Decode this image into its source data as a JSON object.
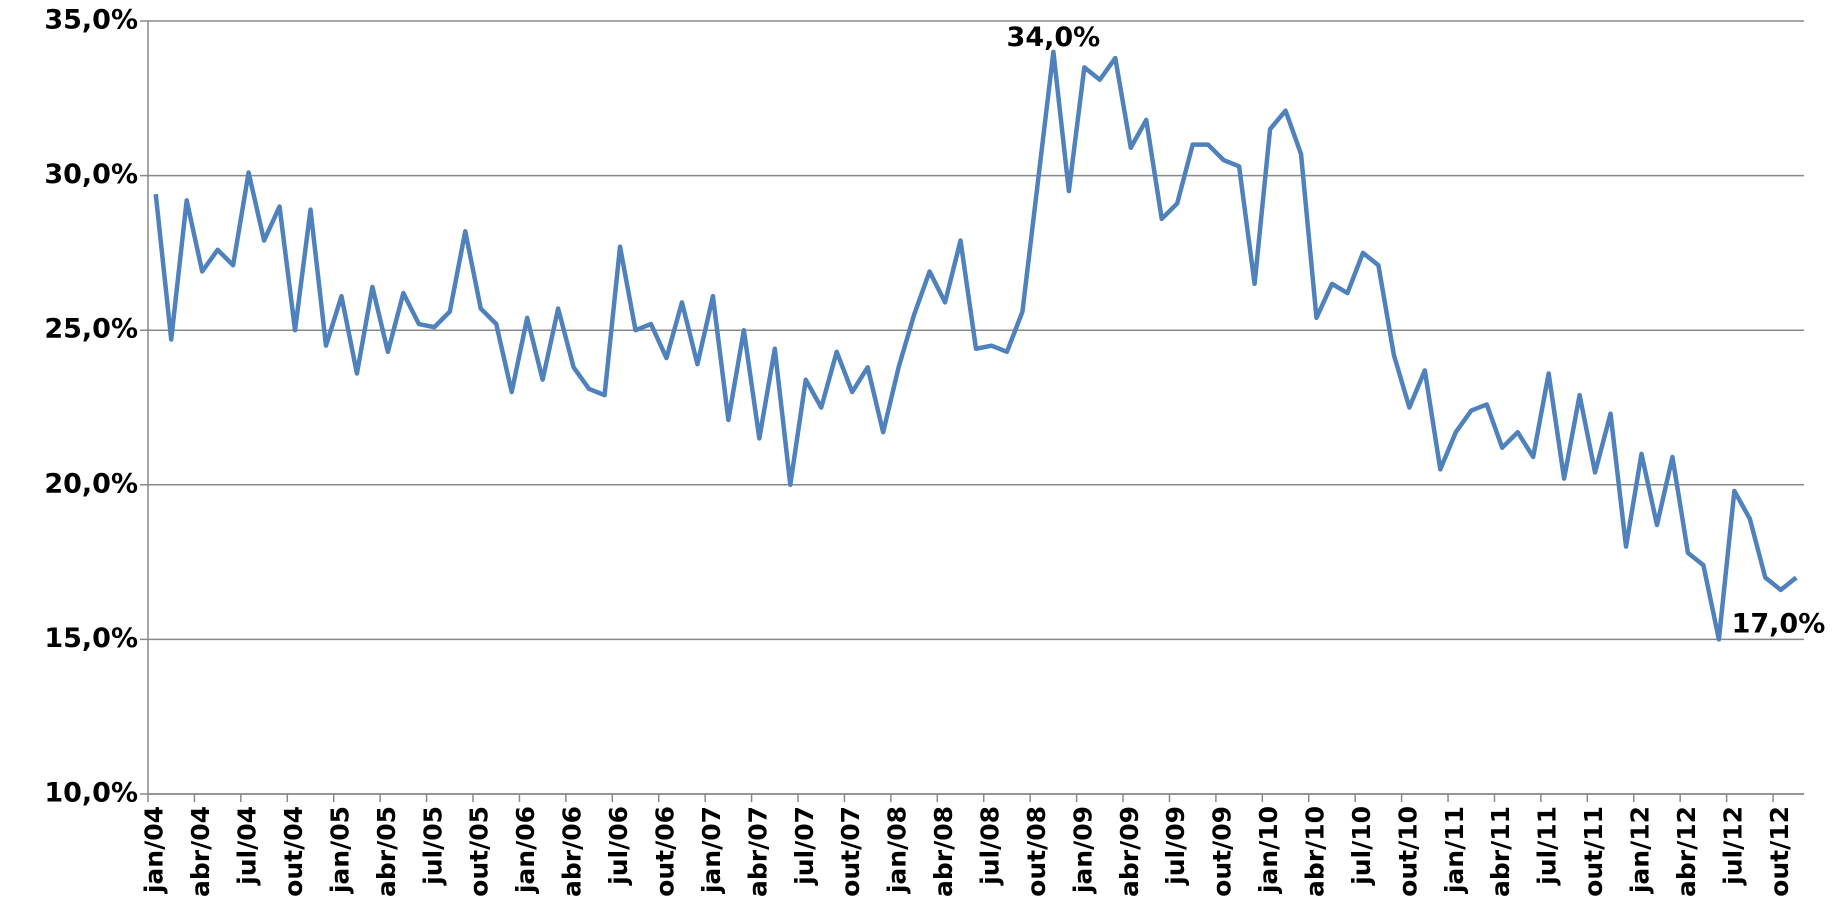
{
  "chart_data": {
    "type": "line",
    "categories": [
      "jan/04",
      null,
      null,
      "abr/04",
      null,
      null,
      "jul/04",
      null,
      null,
      "out/04",
      null,
      null,
      "jan/05",
      null,
      null,
      "abr/05",
      null,
      null,
      "jul/05",
      null,
      null,
      "out/05",
      null,
      null,
      "jan/06",
      null,
      null,
      "abr/06",
      null,
      null,
      "jul/06",
      null,
      null,
      "out/06",
      null,
      null,
      "jan/07",
      null,
      null,
      "abr/07",
      null,
      null,
      "jul/07",
      null,
      null,
      "out/07",
      null,
      null,
      "jan/08",
      null,
      null,
      "abr/08",
      null,
      null,
      "jul/08",
      null,
      null,
      "out/08",
      null,
      null,
      "jan/09",
      null,
      null,
      "abr/09",
      null,
      null,
      "jul/09",
      null,
      null,
      "out/09",
      null,
      null,
      "jan/10",
      null,
      null,
      "abr/10",
      null,
      null,
      "jul/10",
      null,
      null,
      "out/10",
      null,
      null,
      "jan/11",
      null,
      null,
      "abr/11",
      null,
      null,
      "jul/11",
      null,
      null,
      "out/11",
      null,
      null,
      "jan/12",
      null,
      null,
      "abr/12",
      null,
      null,
      "jul/12",
      null,
      null,
      "out/12",
      null
    ],
    "values": [
      29.4,
      24.7,
      29.2,
      26.9,
      27.6,
      27.1,
      30.1,
      27.9,
      29.0,
      25.0,
      28.9,
      24.5,
      26.1,
      23.6,
      26.4,
      24.3,
      26.2,
      25.2,
      25.1,
      25.6,
      28.2,
      25.7,
      25.2,
      23.0,
      25.4,
      23.4,
      25.7,
      23.8,
      23.1,
      22.9,
      27.7,
      25.0,
      25.2,
      24.1,
      25.9,
      23.9,
      26.1,
      22.1,
      25.0,
      21.5,
      24.4,
      20.0,
      23.4,
      22.5,
      24.3,
      23.0,
      23.8,
      21.7,
      23.8,
      25.5,
      26.9,
      25.9,
      27.9,
      24.4,
      24.5,
      24.3,
      25.6,
      29.8,
      34.0,
      29.5,
      33.5,
      33.1,
      33.8,
      30.9,
      31.8,
      28.6,
      29.1,
      31.0,
      31.0,
      30.5,
      30.3,
      26.5,
      31.5,
      32.1,
      30.7,
      25.4,
      26.5,
      26.2,
      27.5,
      27.1,
      24.2,
      22.5,
      23.7,
      20.5,
      21.7,
      22.4,
      22.6,
      21.2,
      21.7,
      20.9,
      23.6,
      20.2,
      22.9,
      20.4,
      22.3,
      18.0,
      21.0,
      18.7,
      20.9,
      17.8,
      17.4,
      15.0,
      19.8,
      18.9,
      17.0,
      16.6,
      17.0
    ],
    "value_labels": [
      null,
      null,
      null,
      null,
      null,
      null,
      null,
      null,
      null,
      null,
      null,
      null,
      null,
      null,
      null,
      null,
      null,
      null,
      null,
      null,
      null,
      null,
      null,
      null,
      null,
      null,
      null,
      null,
      null,
      null,
      null,
      null,
      null,
      null,
      null,
      null,
      null,
      null,
      null,
      null,
      null,
      null,
      null,
      null,
      null,
      null,
      null,
      null,
      null,
      null,
      null,
      null,
      null,
      null,
      null,
      null,
      null,
      null,
      "34,0%",
      null,
      null,
      null,
      null,
      null,
      null,
      null,
      null,
      null,
      null,
      null,
      null,
      null,
      null,
      null,
      null,
      null,
      null,
      null,
      null,
      null,
      null,
      null,
      null,
      null,
      null,
      null,
      null,
      null,
      null,
      null,
      null,
      null,
      null,
      null,
      null,
      null,
      null,
      null,
      null,
      null,
      null,
      null,
      null,
      null,
      null,
      null,
      "17,0%"
    ],
    "color": "#4f81bd",
    "ylim": [
      10,
      35
    ],
    "yticks": [
      {
        "value": 10,
        "label": "10,0%"
      },
      {
        "value": 15,
        "label": "15,0%"
      },
      {
        "value": 20,
        "label": "20,0%"
      },
      {
        "value": 25,
        "label": "25,0%"
      },
      {
        "value": 30,
        "label": "30,0%"
      },
      {
        "value": 35,
        "label": "35,0%"
      }
    ],
    "grid": true
  }
}
